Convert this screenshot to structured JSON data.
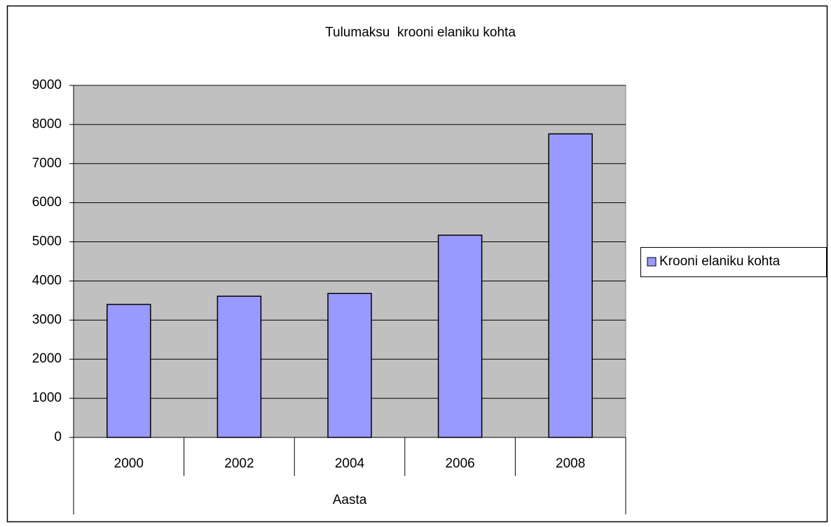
{
  "chart_data": {
    "type": "bar",
    "title": "Tulumaksu  krooni elaniku kohta",
    "x_label": "Aasta",
    "categories": [
      "2000",
      "2002",
      "2004",
      "2006",
      "2008"
    ],
    "series": [
      {
        "name": "Krooni elaniku kohta",
        "color": "#9999ff",
        "values": [
          3400,
          3610,
          3680,
          5170,
          7760
        ]
      }
    ],
    "ylim": [
      0,
      9000
    ],
    "yticks": [
      0,
      1000,
      2000,
      3000,
      4000,
      5000,
      6000,
      7000,
      8000,
      9000
    ],
    "grid": true,
    "legend": "right",
    "plot_background": "#c0c0c0"
  }
}
